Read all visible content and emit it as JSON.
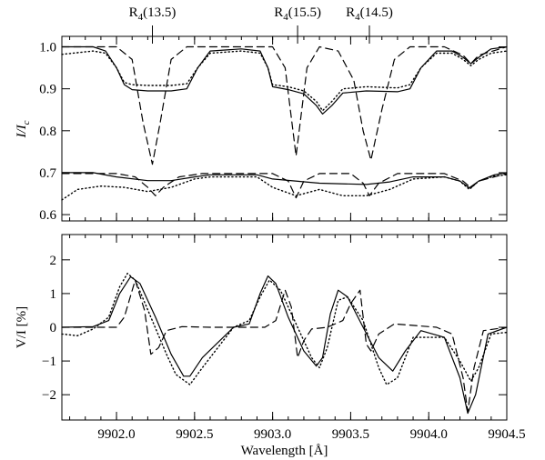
{
  "chart_data": [
    {
      "type": "line",
      "panel": "top",
      "ylabel_main": "I/I",
      "ylabel_sub": "c",
      "xlim": [
        9901.65,
        9904.5
      ],
      "ylim": [
        0.585,
        1.025
      ],
      "yticks": [
        "0.6",
        "0.7",
        "0.8",
        "0.9",
        "1.0"
      ],
      "yticks_values": [
        0.6,
        0.7,
        0.8,
        0.9,
        1.0
      ],
      "xticks_values": [
        9902.0,
        9902.5,
        9903.0,
        9903.5,
        9904.0,
        9904.5
      ],
      "line_markers": [
        {
          "main": "R",
          "sub": "4",
          "rest": "(13.5)",
          "x": 9902.23
        },
        {
          "main": "R",
          "sub": "4",
          "rest": "(15.5)",
          "x": 9903.16
        },
        {
          "main": "R",
          "sub": "4",
          "rest": "(14.5)",
          "x": 9903.62
        }
      ],
      "series": [
        {
          "style": "solid",
          "group": "upper",
          "x": [
            9901.65,
            9901.85,
            9901.93,
            9902.0,
            9902.05,
            9902.1,
            9902.2,
            9902.35,
            9902.45,
            9902.52,
            9902.6,
            9902.8,
            9902.92,
            9902.97,
            9903.0,
            9903.1,
            9903.2,
            9903.28,
            9903.32,
            9903.38,
            9903.45,
            9903.6,
            9903.8,
            9903.88,
            9903.95,
            9904.05,
            9904.15,
            9904.22,
            9904.27,
            9904.32,
            9904.4,
            9904.5
          ],
          "y": [
            1.0,
            1.0,
            0.99,
            0.95,
            0.91,
            0.898,
            0.895,
            0.895,
            0.9,
            0.95,
            0.99,
            0.995,
            0.99,
            0.95,
            0.905,
            0.898,
            0.888,
            0.86,
            0.84,
            0.86,
            0.89,
            0.895,
            0.893,
            0.9,
            0.95,
            0.99,
            0.99,
            0.975,
            0.96,
            0.975,
            0.995,
            1.0
          ]
        },
        {
          "style": "dotted",
          "group": "upper",
          "x": [
            9901.65,
            9901.85,
            9901.93,
            9902.0,
            9902.05,
            9902.1,
            9902.2,
            9902.35,
            9902.45,
            9902.52,
            9902.6,
            9902.8,
            9902.92,
            9902.97,
            9903.0,
            9903.1,
            9903.2,
            9903.28,
            9903.32,
            9903.38,
            9903.45,
            9903.6,
            9903.8,
            9903.88,
            9903.95,
            9904.05,
            9904.15,
            9904.22,
            9904.27,
            9904.32,
            9904.4,
            9904.5
          ],
          "y": [
            0.982,
            0.99,
            0.985,
            0.95,
            0.915,
            0.91,
            0.908,
            0.908,
            0.912,
            0.95,
            0.985,
            0.99,
            0.985,
            0.95,
            0.91,
            0.905,
            0.895,
            0.87,
            0.848,
            0.87,
            0.9,
            0.905,
            0.902,
            0.91,
            0.95,
            0.985,
            0.985,
            0.97,
            0.955,
            0.97,
            0.985,
            0.99
          ]
        },
        {
          "style": "dashed",
          "group": "upper",
          "x": [
            9901.65,
            9902.0,
            9902.1,
            9902.17,
            9902.23,
            9902.28,
            9902.35,
            9902.45,
            9902.6,
            9903.0,
            9903.08,
            9903.15,
            9903.22,
            9903.3,
            9903.42,
            9903.52,
            9903.58,
            9903.63,
            9903.7,
            9903.78,
            9903.88,
            9904.1,
            9904.22,
            9904.27,
            9904.32,
            9904.5
          ],
          "y": [
            1.0,
            1.0,
            0.97,
            0.82,
            0.72,
            0.82,
            0.97,
            1.0,
            1.0,
            1.0,
            0.95,
            0.74,
            0.95,
            1.0,
            0.99,
            0.92,
            0.8,
            0.73,
            0.85,
            0.97,
            1.0,
            1.0,
            0.98,
            0.96,
            0.98,
            1.0
          ]
        },
        {
          "style": "solid",
          "group": "lower",
          "x": [
            9901.65,
            9901.85,
            9902.0,
            9902.2,
            9902.35,
            9902.5,
            9902.6,
            9902.9,
            9903.0,
            9903.3,
            9903.6,
            9903.75,
            9903.9,
            9904.1,
            9904.2,
            9904.26,
            9904.32,
            9904.42,
            9904.5
          ],
          "y": [
            0.7,
            0.7,
            0.69,
            0.681,
            0.681,
            0.69,
            0.695,
            0.695,
            0.685,
            0.675,
            0.672,
            0.678,
            0.69,
            0.69,
            0.68,
            0.664,
            0.68,
            0.695,
            0.7
          ]
        },
        {
          "style": "dotted",
          "group": "lower",
          "x": [
            9901.65,
            9901.75,
            9901.9,
            9902.05,
            9902.2,
            9902.35,
            9902.5,
            9902.6,
            9902.9,
            9903.0,
            9903.15,
            9903.3,
            9903.45,
            9903.6,
            9903.75,
            9903.9,
            9904.1,
            9904.2,
            9904.26,
            9904.32,
            9904.42,
            9904.5
          ],
          "y": [
            0.635,
            0.66,
            0.668,
            0.665,
            0.655,
            0.665,
            0.685,
            0.69,
            0.69,
            0.665,
            0.645,
            0.66,
            0.645,
            0.645,
            0.66,
            0.685,
            0.69,
            0.68,
            0.66,
            0.68,
            0.692,
            0.695
          ]
        },
        {
          "style": "dashed",
          "group": "lower",
          "x": [
            9901.65,
            9902.0,
            9902.12,
            9902.2,
            9902.25,
            9902.3,
            9902.4,
            9902.55,
            9903.0,
            9903.1,
            9903.15,
            9903.2,
            9903.3,
            9903.5,
            9903.58,
            9903.62,
            9903.68,
            9903.8,
            9904.1,
            9904.22,
            9904.27,
            9904.32,
            9904.5
          ],
          "y": [
            0.698,
            0.698,
            0.69,
            0.665,
            0.645,
            0.665,
            0.69,
            0.698,
            0.698,
            0.68,
            0.64,
            0.68,
            0.698,
            0.698,
            0.675,
            0.645,
            0.675,
            0.698,
            0.698,
            0.68,
            0.664,
            0.68,
            0.698
          ]
        }
      ]
    },
    {
      "type": "line",
      "panel": "bottom",
      "ylabel": "V/I [%]",
      "xlabel": "Wavelength [Å]",
      "xlim": [
        9901.65,
        9904.5
      ],
      "ylim": [
        -2.75,
        2.75
      ],
      "yticks": [
        "−2",
        "−1",
        "0",
        "1",
        "2"
      ],
      "yticks_values": [
        -2,
        -1,
        0,
        1,
        2
      ],
      "xticks": [
        "9902.0",
        "9902.5",
        "9903.0",
        "9903.5",
        "9904.0",
        "9904.5"
      ],
      "xticks_values": [
        9902.0,
        9902.5,
        9903.0,
        9903.5,
        9904.0,
        9904.5
      ],
      "series": [
        {
          "style": "solid",
          "x": [
            9901.65,
            9901.85,
            9901.95,
            9902.02,
            9902.09,
            9902.15,
            9902.25,
            9902.35,
            9902.43,
            9902.47,
            9902.55,
            9902.75,
            9902.85,
            9902.92,
            9902.97,
            9903.02,
            9903.1,
            9903.2,
            9903.28,
            9903.32,
            9903.37,
            9903.42,
            9903.48,
            9903.58,
            9903.68,
            9903.77,
            9903.85,
            9903.95,
            9904.1,
            9904.2,
            9904.25,
            9904.3,
            9904.38,
            9904.5
          ],
          "y": [
            0.0,
            0.02,
            0.2,
            1.0,
            1.5,
            1.3,
            0.3,
            -0.8,
            -1.45,
            -1.45,
            -0.9,
            0.0,
            0.1,
            1.0,
            1.52,
            1.3,
            0.3,
            -0.7,
            -1.15,
            -0.9,
            0.4,
            1.1,
            0.9,
            0.0,
            -0.9,
            -1.3,
            -0.7,
            -0.1,
            -0.3,
            -1.5,
            -2.55,
            -2.0,
            -0.2,
            0.0
          ]
        },
        {
          "style": "dotted",
          "x": [
            9901.65,
            9901.75,
            9901.85,
            9901.95,
            9902.02,
            9902.07,
            9902.12,
            9902.22,
            9902.32,
            9902.38,
            9902.47,
            9902.55,
            9902.75,
            9902.85,
            9902.92,
            9902.98,
            9903.05,
            9903.15,
            9903.25,
            9903.3,
            9903.35,
            9903.42,
            9903.48,
            9903.58,
            9903.68,
            9903.73,
            9903.8,
            9903.9,
            9904.1,
            9904.2,
            9904.27,
            9904.32,
            9904.4,
            9904.5
          ],
          "y": [
            -0.2,
            -0.25,
            -0.05,
            0.3,
            1.2,
            1.6,
            1.4,
            0.3,
            -0.8,
            -1.4,
            -1.7,
            -1.2,
            0.0,
            0.2,
            0.9,
            1.4,
            1.1,
            0.1,
            -0.9,
            -1.2,
            -0.6,
            0.8,
            0.9,
            0.2,
            -1.2,
            -1.7,
            -1.5,
            -0.3,
            -0.3,
            -1.0,
            -1.6,
            -1.2,
            -0.2,
            -0.15
          ]
        },
        {
          "style": "dashed",
          "x": [
            9901.65,
            9902.0,
            9902.05,
            9902.12,
            9902.18,
            9902.22,
            9902.27,
            9902.32,
            9902.42,
            9902.6,
            9902.95,
            9903.02,
            9903.08,
            9903.12,
            9903.16,
            9903.2,
            9903.25,
            9903.35,
            9903.45,
            9903.5,
            9903.56,
            9903.6,
            9903.63,
            9903.68,
            9903.78,
            9904.05,
            9904.15,
            9904.22,
            9904.25,
            9904.29,
            9904.35,
            9904.5
          ],
          "y": [
            0.0,
            0.0,
            0.3,
            1.4,
            0.5,
            -0.8,
            -0.6,
            -0.1,
            0.02,
            0.0,
            0.0,
            0.2,
            1.1,
            0.6,
            -0.9,
            -0.4,
            -0.05,
            0.0,
            0.2,
            0.7,
            1.1,
            -0.5,
            -0.7,
            -0.2,
            0.1,
            0.0,
            -0.2,
            -1.5,
            -2.5,
            -1.2,
            -0.1,
            0.0
          ]
        }
      ]
    }
  ]
}
